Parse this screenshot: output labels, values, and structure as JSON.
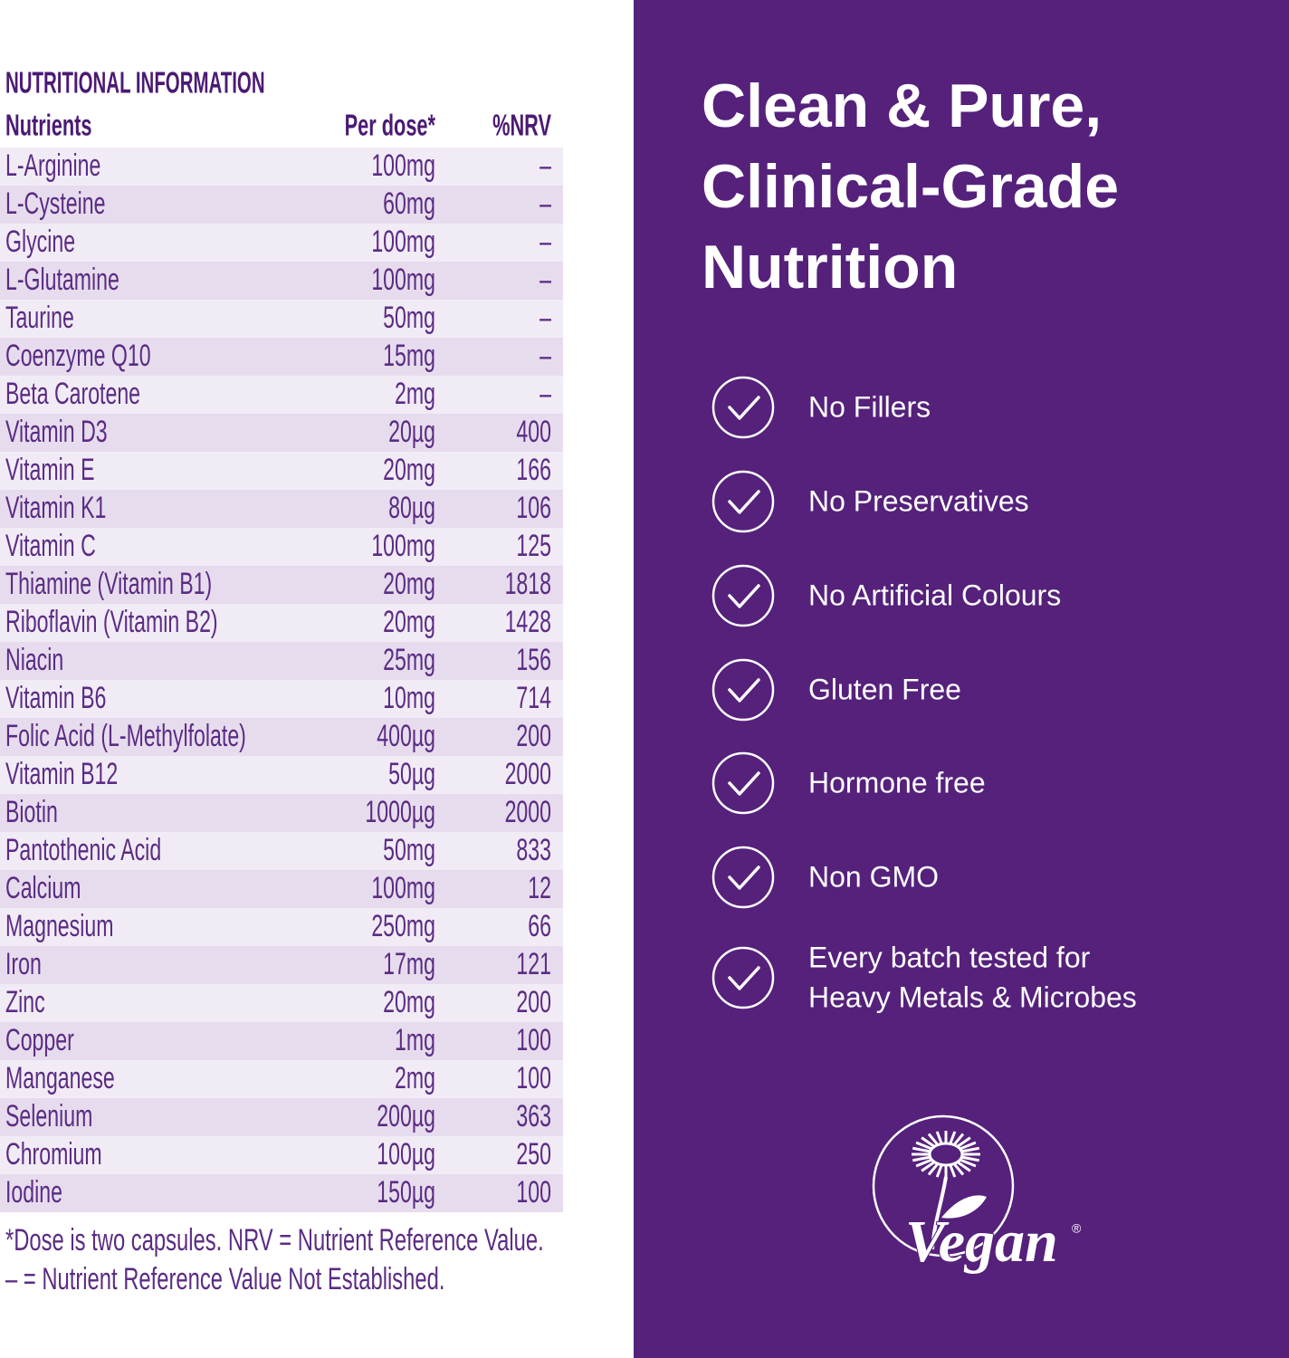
{
  "table": {
    "title": "NUTRITIONAL INFORMATION",
    "headers": [
      "Nutrients",
      "Per dose*",
      "%NRV"
    ],
    "rows": [
      [
        "L-Arginine",
        "100mg",
        "–"
      ],
      [
        "L-Cysteine",
        "60mg",
        "–"
      ],
      [
        "Glycine",
        "100mg",
        "–"
      ],
      [
        "L-Glutamine",
        "100mg",
        "–"
      ],
      [
        "Taurine",
        "50mg",
        "–"
      ],
      [
        "Coenzyme Q10",
        "15mg",
        "–"
      ],
      [
        "Beta Carotene",
        "2mg",
        "–"
      ],
      [
        "Vitamin D3",
        "20µg",
        "400"
      ],
      [
        "Vitamin E",
        "20mg",
        "166"
      ],
      [
        "Vitamin K1",
        "80µg",
        "106"
      ],
      [
        "Vitamin C",
        "100mg",
        "125"
      ],
      [
        "Thiamine (Vitamin B1)",
        "20mg",
        "1818"
      ],
      [
        "Riboflavin (Vitamin B2)",
        "20mg",
        "1428"
      ],
      [
        "Niacin",
        "25mg",
        "156"
      ],
      [
        "Vitamin B6",
        "10mg",
        "714"
      ],
      [
        "Folic Acid (L-Methylfolate)",
        "400µg",
        "200"
      ],
      [
        "Vitamin B12",
        "50µg",
        "2000"
      ],
      [
        "Biotin",
        "1000µg",
        "2000"
      ],
      [
        "Pantothenic Acid",
        "50mg",
        "833"
      ],
      [
        "Calcium",
        "100mg",
        "12"
      ],
      [
        "Magnesium",
        "250mg",
        "66"
      ],
      [
        "Iron",
        "17mg",
        "121"
      ],
      [
        "Zinc",
        "20mg",
        "200"
      ],
      [
        "Copper",
        "1mg",
        "100"
      ],
      [
        "Manganese",
        "2mg",
        "100"
      ],
      [
        "Selenium",
        "200µg",
        "363"
      ],
      [
        "Chromium",
        "100µg",
        "250"
      ],
      [
        "Iodine",
        "150µg",
        "100"
      ]
    ],
    "footnotes": [
      "*Dose is two capsules. NRV = Nutrient Reference Value.",
      "– = Nutrient Reference Value Not Established."
    ]
  },
  "panel": {
    "title_lines": [
      "Clean & Pure,",
      "Clinical-Grade",
      "Nutrition"
    ],
    "features": [
      [
        "No Fillers"
      ],
      [
        "No Preservatives"
      ],
      [
        "No Artificial Colours"
      ],
      [
        "Gluten Free"
      ],
      [
        "Hormone free"
      ],
      [
        "Non GMO"
      ],
      [
        "Every batch tested for",
        "Heavy Metals & Microbes"
      ]
    ],
    "logo": {
      "text": "Vegan",
      "mark": "®"
    }
  }
}
